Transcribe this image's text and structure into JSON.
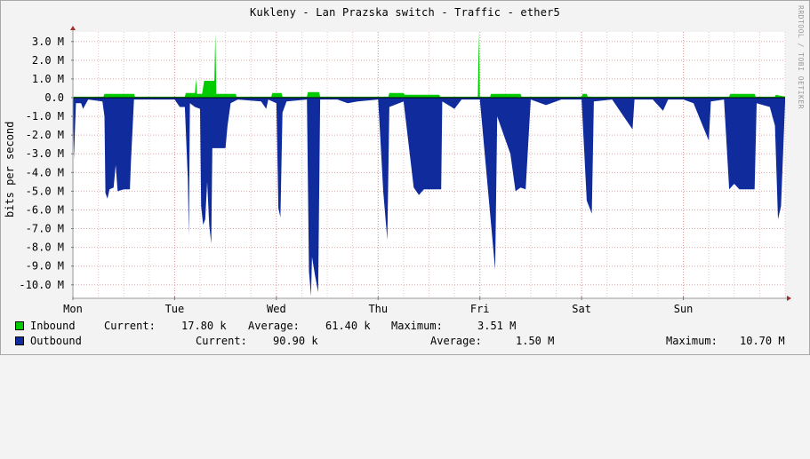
{
  "chart_data": {
    "type": "area",
    "title": "Kukleny - Lan Prazska switch - Traffic - ether5",
    "ylabel": "bits per second",
    "watermark": "RRDTOOL / TOBI OETIKER",
    "ylim": [
      -10.7,
      3.6
    ],
    "y_ticks": [
      {
        "value": 3.0,
        "label": "3.0 M"
      },
      {
        "value": 2.0,
        "label": "2.0 M"
      },
      {
        "value": 1.0,
        "label": "1.0 M"
      },
      {
        "value": 0.0,
        "label": "0.0"
      },
      {
        "value": -1.0,
        "label": "-1.0 M"
      },
      {
        "value": -2.0,
        "label": "-2.0 M"
      },
      {
        "value": -3.0,
        "label": "-3.0 M"
      },
      {
        "value": -4.0,
        "label": "-4.0 M"
      },
      {
        "value": -5.0,
        "label": "-5.0 M"
      },
      {
        "value": -6.0,
        "label": "-6.0 M"
      },
      {
        "value": -7.0,
        "label": "-7.0 M"
      },
      {
        "value": -8.0,
        "label": "-8.0 M"
      },
      {
        "value": -9.0,
        "label": "-9.0 M"
      },
      {
        "value": -10.0,
        "label": "-10.0 M"
      }
    ],
    "x_ticks": [
      {
        "value": 0,
        "label": "Mon"
      },
      {
        "value": 1,
        "label": "Tue"
      },
      {
        "value": 2,
        "label": "Wed"
      },
      {
        "value": 3,
        "label": "Thu"
      },
      {
        "value": 4,
        "label": "Fri"
      },
      {
        "value": 5,
        "label": "Sat"
      },
      {
        "value": 6,
        "label": "Sun"
      }
    ],
    "xlim": [
      0,
      7.0
    ],
    "series": [
      {
        "name": "Inbound",
        "color": "#00cc00",
        "unit": "Mbps",
        "points": [
          [
            0.0,
            0.05
          ],
          [
            0.3,
            0.05
          ],
          [
            0.31,
            0.2
          ],
          [
            0.6,
            0.2
          ],
          [
            0.61,
            0.05
          ],
          [
            1.1,
            0.05
          ],
          [
            1.11,
            0.25
          ],
          [
            1.2,
            0.25
          ],
          [
            1.21,
            1.0
          ],
          [
            1.22,
            0.2
          ],
          [
            1.27,
            0.2
          ],
          [
            1.29,
            0.9
          ],
          [
            1.39,
            0.9
          ],
          [
            1.4,
            3.45
          ],
          [
            1.41,
            0.2
          ],
          [
            1.6,
            0.2
          ],
          [
            1.61,
            0.05
          ],
          [
            1.95,
            0.05
          ],
          [
            1.96,
            0.25
          ],
          [
            2.05,
            0.25
          ],
          [
            2.06,
            0.05
          ],
          [
            2.3,
            0.05
          ],
          [
            2.31,
            0.3
          ],
          [
            2.42,
            0.3
          ],
          [
            2.43,
            0.05
          ],
          [
            3.1,
            0.05
          ],
          [
            3.11,
            0.25
          ],
          [
            3.25,
            0.25
          ],
          [
            3.26,
            0.15
          ],
          [
            3.6,
            0.15
          ],
          [
            3.61,
            0.05
          ],
          [
            3.98,
            0.05
          ],
          [
            3.99,
            3.51
          ],
          [
            4.0,
            0.05
          ],
          [
            4.1,
            0.05
          ],
          [
            4.11,
            0.2
          ],
          [
            4.4,
            0.2
          ],
          [
            4.41,
            0.05
          ],
          [
            5.0,
            0.05
          ],
          [
            5.01,
            0.2
          ],
          [
            5.05,
            0.2
          ],
          [
            5.06,
            0.05
          ],
          [
            6.45,
            0.05
          ],
          [
            6.46,
            0.2
          ],
          [
            6.7,
            0.2
          ],
          [
            6.71,
            0.05
          ],
          [
            6.9,
            0.05
          ],
          [
            6.91,
            0.15
          ],
          [
            7.0,
            0.05
          ]
        ]
      },
      {
        "name": "Outbound",
        "color": "#0f2b9c",
        "unit": "Mbps",
        "points": [
          [
            0.0,
            -0.2
          ],
          [
            0.01,
            -3.3
          ],
          [
            0.03,
            -0.3
          ],
          [
            0.08,
            -0.3
          ],
          [
            0.1,
            -0.6
          ],
          [
            0.15,
            -0.1
          ],
          [
            0.29,
            -0.2
          ],
          [
            0.31,
            -1.0
          ],
          [
            0.32,
            -5.1
          ],
          [
            0.34,
            -5.4
          ],
          [
            0.36,
            -4.9
          ],
          [
            0.4,
            -4.8
          ],
          [
            0.42,
            -3.6
          ],
          [
            0.44,
            -5.0
          ],
          [
            0.5,
            -4.9
          ],
          [
            0.56,
            -4.9
          ],
          [
            0.57,
            -3.5
          ],
          [
            0.6,
            -0.1
          ],
          [
            1.0,
            -0.1
          ],
          [
            1.05,
            -0.5
          ],
          [
            1.1,
            -0.5
          ],
          [
            1.13,
            -4.4
          ],
          [
            1.14,
            -7.4
          ],
          [
            1.15,
            -0.3
          ],
          [
            1.2,
            -0.5
          ],
          [
            1.25,
            -0.6
          ],
          [
            1.26,
            -5.8
          ],
          [
            1.28,
            -6.8
          ],
          [
            1.3,
            -6.5
          ],
          [
            1.32,
            -4.5
          ],
          [
            1.34,
            -6.8
          ],
          [
            1.36,
            -7.8
          ],
          [
            1.37,
            -2.7
          ],
          [
            1.5,
            -2.7
          ],
          [
            1.52,
            -1.5
          ],
          [
            1.55,
            -0.3
          ],
          [
            1.62,
            -0.1
          ],
          [
            1.85,
            -0.2
          ],
          [
            1.9,
            -0.6
          ],
          [
            1.92,
            -0.1
          ],
          [
            2.0,
            -0.3
          ],
          [
            2.02,
            -5.9
          ],
          [
            2.04,
            -6.4
          ],
          [
            2.06,
            -0.8
          ],
          [
            2.1,
            -0.2
          ],
          [
            2.3,
            -0.1
          ],
          [
            2.32,
            -9.3
          ],
          [
            2.34,
            -10.6
          ],
          [
            2.35,
            -8.5
          ],
          [
            2.38,
            -9.5
          ],
          [
            2.41,
            -10.4
          ],
          [
            2.43,
            -0.1
          ],
          [
            2.6,
            -0.1
          ],
          [
            2.7,
            -0.3
          ],
          [
            2.8,
            -0.2
          ],
          [
            3.0,
            -0.1
          ],
          [
            3.02,
            -2.0
          ],
          [
            3.05,
            -5.0
          ],
          [
            3.09,
            -7.6
          ],
          [
            3.11,
            -0.5
          ],
          [
            3.25,
            -0.2
          ],
          [
            3.35,
            -4.8
          ],
          [
            3.4,
            -5.2
          ],
          [
            3.45,
            -4.9
          ],
          [
            3.55,
            -4.9
          ],
          [
            3.62,
            -4.9
          ],
          [
            3.63,
            -0.2
          ],
          [
            3.75,
            -0.6
          ],
          [
            3.82,
            -0.1
          ],
          [
            4.0,
            -0.1
          ],
          [
            4.15,
            -9.2
          ],
          [
            4.17,
            -1.0
          ],
          [
            4.3,
            -3.0
          ],
          [
            4.35,
            -5.0
          ],
          [
            4.4,
            -4.8
          ],
          [
            4.45,
            -4.9
          ],
          [
            4.5,
            -0.1
          ],
          [
            4.65,
            -0.4
          ],
          [
            4.8,
            -0.1
          ],
          [
            5.0,
            -0.1
          ],
          [
            5.05,
            -5.5
          ],
          [
            5.1,
            -6.2
          ],
          [
            5.12,
            -0.2
          ],
          [
            5.3,
            -0.1
          ],
          [
            5.5,
            -1.7
          ],
          [
            5.52,
            -0.1
          ],
          [
            5.7,
            -0.1
          ],
          [
            5.8,
            -0.7
          ],
          [
            5.85,
            -0.1
          ],
          [
            6.0,
            -0.1
          ],
          [
            6.1,
            -0.3
          ],
          [
            6.25,
            -2.3
          ],
          [
            6.27,
            -0.2
          ],
          [
            6.4,
            -0.1
          ],
          [
            6.45,
            -4.9
          ],
          [
            6.5,
            -4.6
          ],
          [
            6.55,
            -4.9
          ],
          [
            6.7,
            -4.9
          ],
          [
            6.72,
            -0.3
          ],
          [
            6.85,
            -0.5
          ],
          [
            6.9,
            -1.5
          ],
          [
            6.93,
            -6.5
          ],
          [
            6.96,
            -5.8
          ],
          [
            7.0,
            -0.2
          ]
        ]
      }
    ]
  },
  "legend": [
    {
      "name": "Inbound",
      "current_label": "Current:",
      "current_value": "17.80 k",
      "average_label": "Average:",
      "average_value": "61.40 k",
      "maximum_label": "Maximum:",
      "maximum_value": "3.51 M"
    },
    {
      "name": "Outbound",
      "current_label": "Current:",
      "current_value": "90.90 k",
      "average_label": "Average:",
      "average_value": "1.50 M",
      "maximum_label": "Maximum:",
      "maximum_value": "10.70 M"
    }
  ]
}
